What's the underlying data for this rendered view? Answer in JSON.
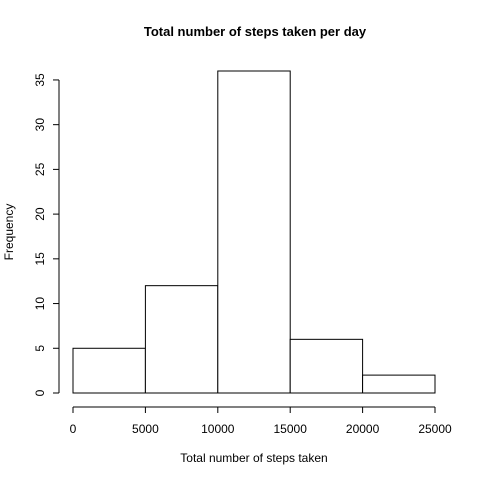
{
  "chart_data": {
    "type": "bar",
    "title": "Total number of steps taken per day",
    "xlabel": "Total number of steps taken",
    "ylabel": "Frequency",
    "bins": [
      {
        "start": 0,
        "end": 5000,
        "count": 5
      },
      {
        "start": 5000,
        "end": 10000,
        "count": 12
      },
      {
        "start": 10000,
        "end": 15000,
        "count": 36
      },
      {
        "start": 15000,
        "end": 20000,
        "count": 6
      },
      {
        "start": 20000,
        "end": 25000,
        "count": 2
      }
    ],
    "xlim": [
      0,
      25000
    ],
    "ylim": [
      0,
      36
    ],
    "x_ticks": [
      0,
      5000,
      10000,
      15000,
      20000,
      25000
    ],
    "x_tick_labels": [
      "0",
      "5000",
      "10000",
      "15000",
      "20000",
      "25000"
    ],
    "y_ticks": [
      0,
      5,
      10,
      15,
      20,
      25,
      30,
      35
    ],
    "y_tick_labels": [
      "0",
      "5",
      "10",
      "15",
      "20",
      "25",
      "30",
      "35"
    ],
    "grid": false,
    "legend": "none",
    "colors": {
      "bar_fill": "#ffffff",
      "bar_stroke": "#000000",
      "axis": "#000000"
    }
  }
}
